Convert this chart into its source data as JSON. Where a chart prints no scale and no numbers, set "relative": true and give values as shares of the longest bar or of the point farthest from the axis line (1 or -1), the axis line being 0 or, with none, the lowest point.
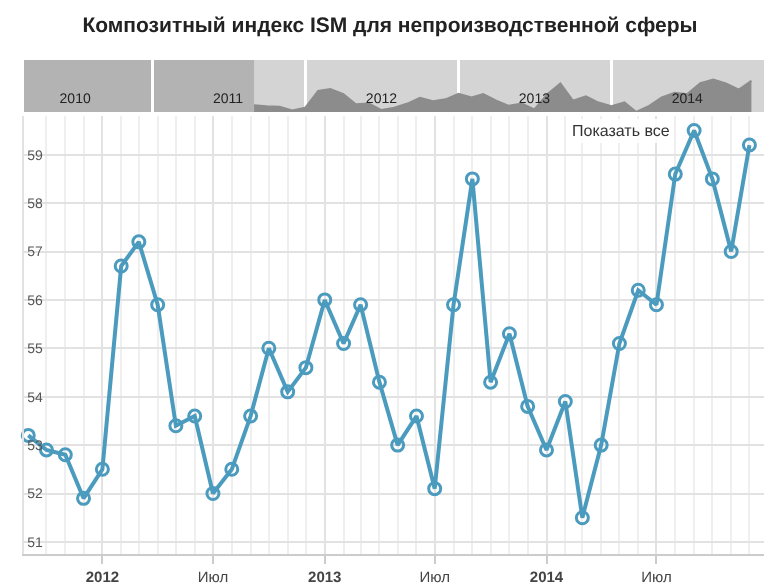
{
  "chart_data": [
    {
      "type": "area",
      "relative": true,
      "tick_labels": "x",
      "grid": "x",
      "title": "Композитный индекс ISM для непроизводственной сферы",
      "x": [
        "2011-09",
        "2011-10",
        "2011-11",
        "2011-12",
        "2012-01",
        "2012-02",
        "2012-03",
        "2012-04",
        "2012-05",
        "2012-06",
        "2012-07",
        "2012-08",
        "2012-09",
        "2012-10",
        "2012-11",
        "2012-12",
        "2013-01",
        "2013-02",
        "2013-03",
        "2013-04",
        "2013-05",
        "2013-06",
        "2013-07",
        "2013-08",
        "2013-09",
        "2013-10",
        "2013-11",
        "2013-12",
        "2014-01",
        "2014-02",
        "2014-03",
        "2014-04",
        "2014-05",
        "2014-06",
        "2014-07",
        "2014-08",
        "2014-09",
        "2014-10",
        "2014-11",
        "2014-12"
      ],
      "series": [
        {
          "color": "#8c8c8c",
          "values": [
            0.21,
            0.18,
            0.16,
            0.05,
            0.13,
            0.65,
            0.71,
            0.55,
            0.24,
            0.26,
            0.06,
            0.13,
            0.26,
            0.44,
            0.33,
            0.39,
            0.56,
            0.45,
            0.55,
            0.35,
            0.19,
            0.26,
            0.08,
            0.55,
            0.88,
            0.35,
            0.48,
            0.29,
            0.18,
            0.3,
            0,
            0.19,
            0.45,
            0.59,
            0.55,
            0.89,
            1,
            0.88,
            0.69,
            0.96
          ]
        }
      ],
      "xlim": [
        "2010-03-01",
        "2014-12-31"
      ],
      "xticks": [
        {
          "value": "2010-07-01",
          "label": "2010"
        },
        {
          "value": "2011-01-01",
          "label": null
        },
        {
          "value": "2011-07-01",
          "label": "2011"
        },
        {
          "value": "2012-01-01",
          "label": null
        },
        {
          "value": "2012-07-01",
          "label": "2012"
        },
        {
          "value": "2013-01-01",
          "label": null
        },
        {
          "value": "2013-07-01",
          "label": "2013"
        },
        {
          "value": "2014-01-01",
          "label": null
        },
        {
          "value": "2014-07-01",
          "label": "2014"
        }
      ],
      "bands": [
        {
          "axis": "x",
          "from": "2010-03-01",
          "to": "2011-09-01",
          "color": "#b3b3b3"
        }
      ]
    },
    {
      "type": "line",
      "x": [
        "2011-09",
        "2011-10",
        "2011-11",
        "2011-12",
        "2012-01",
        "2012-02",
        "2012-03",
        "2012-04",
        "2012-05",
        "2012-06",
        "2012-07",
        "2012-08",
        "2012-09",
        "2012-10",
        "2012-11",
        "2012-12",
        "2013-01",
        "2013-02",
        "2013-03",
        "2013-04",
        "2013-05",
        "2013-06",
        "2013-07",
        "2013-08",
        "2013-09",
        "2013-10",
        "2013-11",
        "2013-12",
        "2014-01",
        "2014-02",
        "2014-03",
        "2014-04",
        "2014-05",
        "2014-06",
        "2014-07",
        "2014-08",
        "2014-09",
        "2014-10",
        "2014-11",
        "2014-12"
      ],
      "series": [
        {
          "color": "#4b9bbf",
          "values": [
            53.2,
            52.9,
            52.8,
            51.9,
            52.5,
            56.7,
            57.2,
            55.9,
            53.4,
            53.6,
            52.0,
            52.5,
            53.6,
            55.0,
            54.1,
            54.6,
            56.0,
            55.1,
            55.9,
            54.3,
            53.0,
            53.6,
            52.1,
            55.9,
            58.5,
            54.3,
            55.3,
            53.8,
            52.9,
            53.9,
            51.5,
            53.0,
            55.1,
            56.2,
            55.9,
            58.6,
            59.5,
            58.5,
            57.0,
            59.2
          ]
        }
      ],
      "xlim": [
        "2011-08-25",
        "2014-12-25"
      ],
      "xticks": [
        {
          "value": "2012-01-01",
          "label": "2012"
        },
        {
          "value": "2012-07-01",
          "label": "Июл"
        },
        {
          "value": "2013-01-01",
          "label": "2013"
        },
        {
          "value": "2013-07-01",
          "label": "Июл"
        },
        {
          "value": "2014-01-01",
          "label": "2014"
        },
        {
          "value": "2014-07-01",
          "label": "Июл"
        }
      ],
      "ylim": [
        50.75,
        59.8
      ],
      "yticks": [
        51,
        52,
        53,
        54,
        55,
        56,
        57,
        58,
        59
      ],
      "annotations": [
        "Показать все"
      ],
      "grid": true,
      "marker": "circle",
      "line_style": "solid"
    }
  ]
}
